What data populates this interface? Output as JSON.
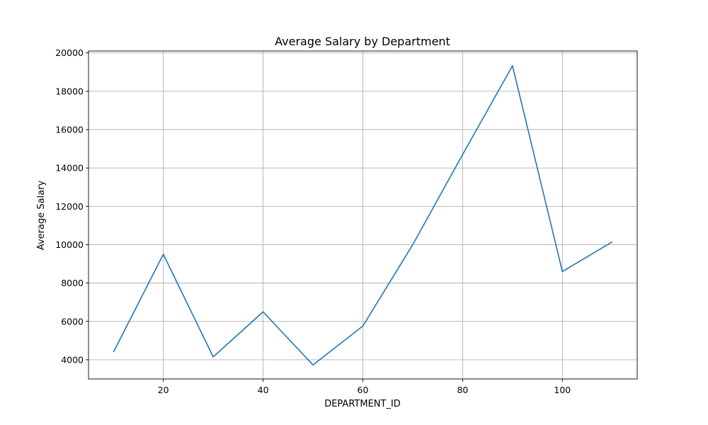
{
  "chart_data": {
    "type": "line",
    "title": "Average Salary by Department",
    "xlabel": "DEPARTMENT_ID",
    "ylabel": "Average Salary",
    "xlim": [
      5,
      115
    ],
    "ylim": [
      3000,
      20100
    ],
    "xticks": [
      20,
      40,
      60,
      80,
      100
    ],
    "yticks": [
      4000,
      6000,
      8000,
      10000,
      12000,
      14000,
      16000,
      18000,
      20000
    ],
    "grid": true,
    "series": [
      {
        "color": "#1f77b4",
        "x": [
          10,
          20,
          30,
          40,
          50,
          60,
          70,
          80,
          90,
          100,
          110
        ],
        "y": [
          4400,
          9500,
          4150,
          6500,
          3730,
          5760,
          10000,
          14700,
          19330,
          8600,
          10150
        ]
      }
    ]
  },
  "colors": {
    "line": "#1f77b4",
    "grid": "#b0b0b0",
    "axes": "#000000"
  }
}
